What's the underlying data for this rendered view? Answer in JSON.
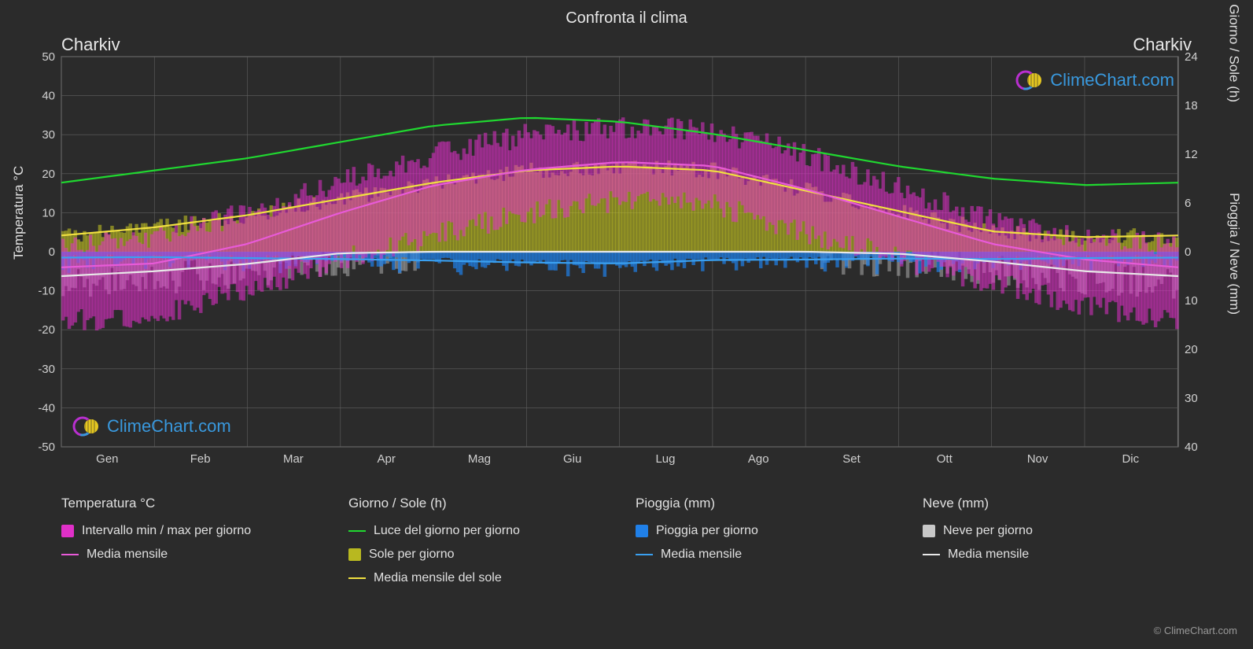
{
  "title": "Confronta il clima",
  "city_left": "Charkiv",
  "city_right": "Charkiv",
  "chart": {
    "background": "#2b2b2b",
    "plot_background": "#2b2b2b",
    "grid_color": "#606060",
    "grid_width": 0.6,
    "plot_border_color": "#808080",
    "months": [
      "Gen",
      "Feb",
      "Mar",
      "Apr",
      "Mag",
      "Giu",
      "Lug",
      "Ago",
      "Set",
      "Ott",
      "Nov",
      "Dic"
    ],
    "left_axis": {
      "label": "Temperatura °C",
      "min": -50,
      "max": 50,
      "step": 10,
      "ticks": [
        -50,
        -40,
        -30,
        -20,
        -10,
        0,
        10,
        20,
        30,
        40,
        50
      ]
    },
    "right_axis_top": {
      "label": "Giorno / Sole (h)",
      "min": 0,
      "max": 24,
      "step": 6,
      "ticks": [
        0,
        6,
        12,
        18,
        24
      ]
    },
    "right_axis_bottom": {
      "label": "Pioggia / Neve (mm)",
      "min": 0,
      "max": 40,
      "step": 10,
      "ticks": [
        0,
        10,
        20,
        30,
        40
      ]
    },
    "series": {
      "temp_range": {
        "color": "#e030c8",
        "opacity": 0.55,
        "min": [
          -18,
          -16,
          -10,
          -2,
          4,
          10,
          13,
          12,
          5,
          -2,
          -8,
          -14
        ],
        "max": [
          2,
          4,
          10,
          18,
          25,
          30,
          32,
          31,
          25,
          16,
          8,
          3
        ],
        "noise_amp": 6
      },
      "temp_mean": {
        "color": "#e85ad8",
        "width": 2.2,
        "values": [
          -4,
          -3,
          2,
          10,
          17,
          21,
          23,
          22,
          16,
          9,
          2,
          -2
        ]
      },
      "daylight": {
        "color": "#20d830",
        "width": 2.2,
        "values_h": [
          8.5,
          10,
          11.5,
          13.5,
          15.5,
          16.5,
          16,
          14.5,
          12.5,
          10.5,
          9,
          8.2
        ]
      },
      "sun_daily": {
        "color": "#cccc20",
        "opacity": 0.55,
        "values_h": [
          2,
          3,
          4.5,
          6.5,
          8.5,
          10,
          10.5,
          10,
          7.5,
          5,
          2.5,
          1.8
        ],
        "noise_amp": 2
      },
      "sun_mean": {
        "color": "#f0e040",
        "width": 2.2,
        "values_h": [
          2,
          3,
          4.5,
          6.5,
          8.5,
          10,
          10.5,
          10,
          7.5,
          5,
          2.5,
          1.8
        ]
      },
      "rain_daily": {
        "color": "#2080e8",
        "opacity": 0.7,
        "mean_mm": [
          1.2,
          1.1,
          1.3,
          1.4,
          1.8,
          2.2,
          2.4,
          1.7,
          1.6,
          1.4,
          1.5,
          1.3
        ],
        "noise_amp": 4
      },
      "rain_mean": {
        "color": "#3aa0f0",
        "width": 2.2,
        "values_mm": [
          1.2,
          1.1,
          1.3,
          1.5,
          1.8,
          2.2,
          2.4,
          1.7,
          1.6,
          1.4,
          1.5,
          1.3
        ]
      },
      "snow_daily": {
        "color": "#c8c8c8",
        "opacity": 0.45,
        "mean_mm": [
          5,
          4,
          2.5,
          0.3,
          0,
          0,
          0,
          0,
          0,
          0.4,
          2,
          4
        ],
        "noise_amp": 7
      },
      "snow_mean": {
        "color": "#e8e8e8",
        "width": 2.2,
        "values_mm": [
          5,
          4,
          2.5,
          0.3,
          0,
          0,
          0,
          0,
          0,
          0.4,
          2,
          4
        ]
      }
    }
  },
  "legend": {
    "groups": [
      {
        "title": "Temperatura °C",
        "items": [
          {
            "type": "box",
            "color": "#e030c8",
            "label": "Intervallo min / max per giorno"
          },
          {
            "type": "line",
            "color": "#e85ad8",
            "label": "Media mensile"
          }
        ]
      },
      {
        "title": "Giorno / Sole (h)",
        "items": [
          {
            "type": "line",
            "color": "#20d830",
            "label": "Luce del giorno per giorno"
          },
          {
            "type": "box",
            "color": "#b8b820",
            "label": "Sole per giorno"
          },
          {
            "type": "line",
            "color": "#f0e040",
            "label": "Media mensile del sole"
          }
        ]
      },
      {
        "title": "Pioggia (mm)",
        "items": [
          {
            "type": "box",
            "color": "#2080e8",
            "label": "Pioggia per giorno"
          },
          {
            "type": "line",
            "color": "#3aa0f0",
            "label": "Media mensile"
          }
        ]
      },
      {
        "title": "Neve (mm)",
        "items": [
          {
            "type": "box",
            "color": "#c8c8c8",
            "label": "Neve per giorno"
          },
          {
            "type": "line",
            "color": "#e8e8e8",
            "label": "Media mensile"
          }
        ]
      }
    ]
  },
  "watermark": {
    "text": "ClimeChart.com",
    "color": "#3a9fe8",
    "ring_color": "#c030d8",
    "sun_color": "#f0d020"
  },
  "footer": "© ClimeChart.com"
}
